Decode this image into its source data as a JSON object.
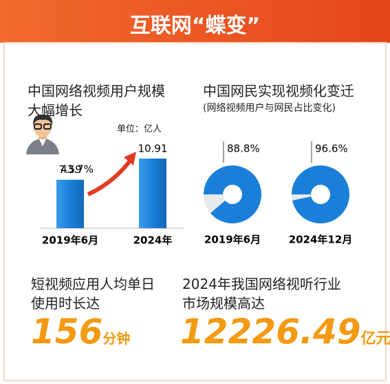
{
  "title": "互联网“蝶变”",
  "chart_data": [
    {
      "type": "bar",
      "title": "中国网络视频用户规模大幅增长",
      "unit": "单位：亿人",
      "categories": [
        "2019年6月",
        "2024年"
      ],
      "values": [
        7.59,
        10.91
      ],
      "color": "#1a7fd8",
      "annotation": "43.7%",
      "annotation_color": "#e23b22"
    },
    {
      "type": "donut",
      "title": "中国网民实现视频化变迁",
      "subtitle": "(网络视频用户与网民占比变化)",
      "categories": [
        "2019年6月",
        "2024年12月"
      ],
      "values": [
        88.8,
        96.6
      ],
      "value_labels": [
        "88.8%",
        "96.6%"
      ],
      "color": "#1a7fd8",
      "rest_color": "#e6e9ee"
    }
  ],
  "stats": [
    {
      "label": "短视频应用人均单日使用时长达",
      "value": 156,
      "unit": "分钟"
    },
    {
      "label": "2024年我国网络视听行业市场规模高达",
      "value": 12226.49,
      "unit": "亿元"
    }
  ]
}
